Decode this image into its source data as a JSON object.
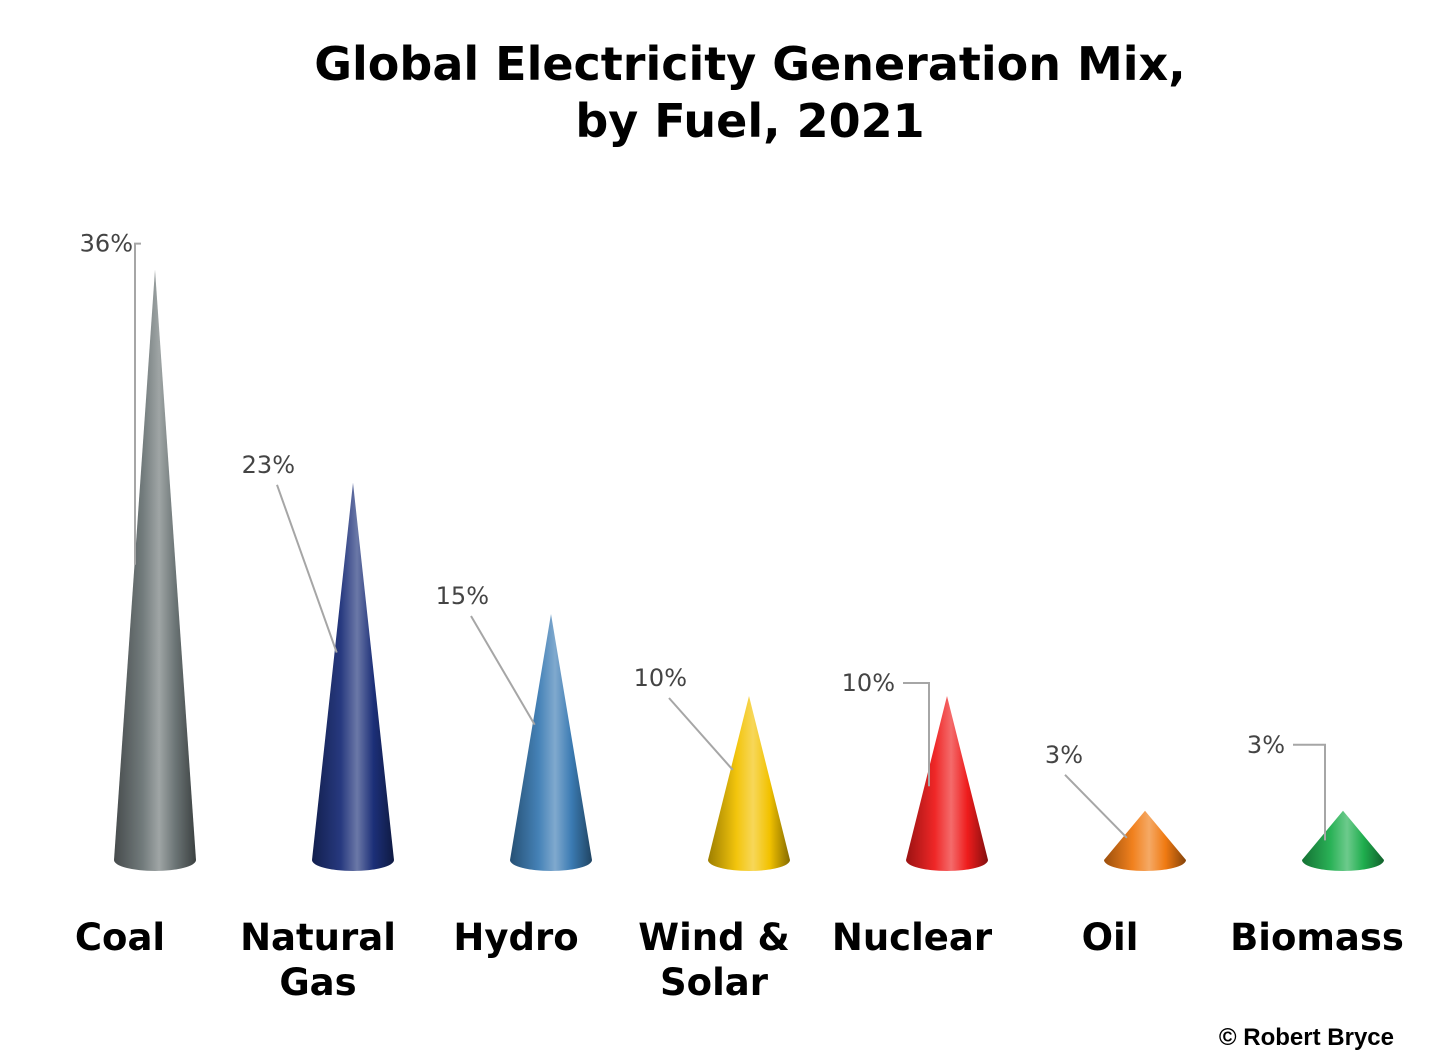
{
  "chart_data": {
    "type": "bar",
    "title": "Global Electricity Generation Mix, by Fuel, 2021",
    "title_lines": [
      "Global Electricity Generation Mix,",
      "by Fuel, 2021"
    ],
    "categories": [
      "Coal",
      "Natural Gas",
      "Hydro",
      "Wind & Solar",
      "Nuclear",
      "Oil",
      "Biomass"
    ],
    "category_lines": [
      [
        "Coal"
      ],
      [
        "Natural",
        "Gas"
      ],
      [
        "Hydro"
      ],
      [
        "Wind &",
        "Solar"
      ],
      [
        "Nuclear"
      ],
      [
        "Oil"
      ],
      [
        "Biomass"
      ]
    ],
    "values": [
      36,
      23,
      15,
      10,
      10,
      3,
      3
    ],
    "data_labels": [
      "36%",
      "23%",
      "15%",
      "10%",
      "10%",
      "3%",
      "3%"
    ],
    "unit": "%",
    "colors": [
      "#6b7475",
      "#1c2f78",
      "#3b7bb3",
      "#f2c200",
      "#ee1c1c",
      "#f07a12",
      "#1fae4e"
    ],
    "mark_shape": "cone",
    "grid": false,
    "legend": "none",
    "xlabel": "",
    "ylabel": ""
  },
  "credit": "© Robert Bryce"
}
